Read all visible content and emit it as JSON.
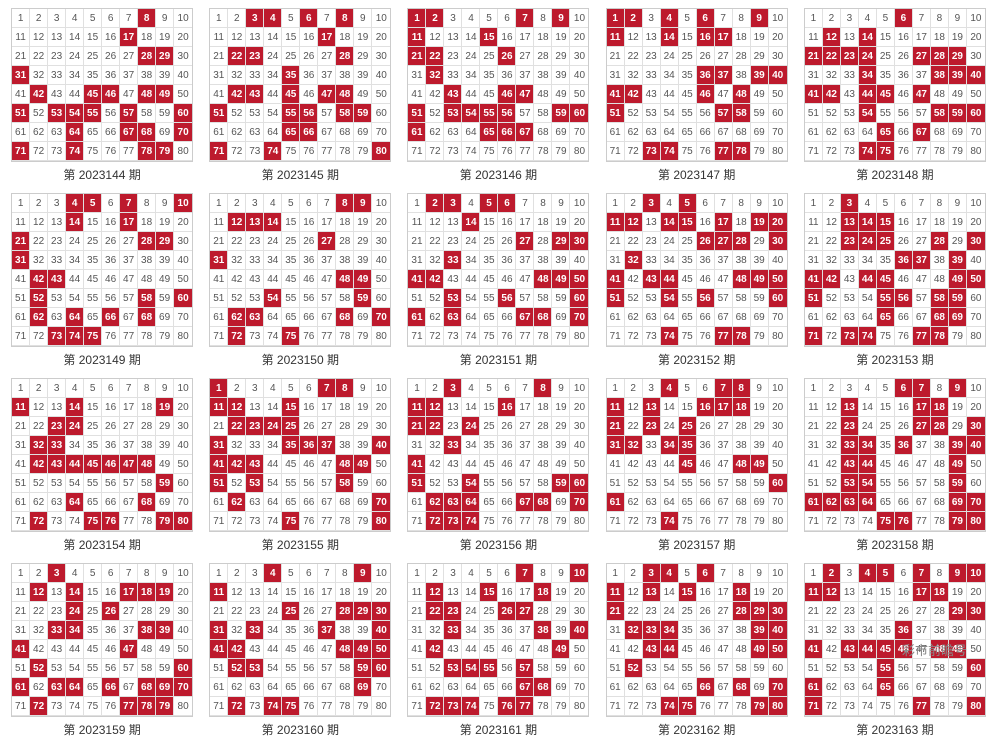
{
  "label_prefix": "第 ",
  "label_suffix": " 期",
  "colors": {
    "hit_bg": "#bd1a2d",
    "hit_text": "#ffffff",
    "cell_text": "#555555",
    "border": "#e0e0e0",
    "outer_border": "#cccccc",
    "background": "#ffffff",
    "label_text": "#333333"
  },
  "grid": {
    "rows": 8,
    "cols": 10,
    "max_number": 80
  },
  "cards": [
    {
      "period": "2023144",
      "hits": [
        8,
        17,
        28,
        29,
        31,
        42,
        45,
        46,
        48,
        49,
        51,
        53,
        54,
        55,
        57,
        60,
        64,
        67,
        68,
        70,
        71,
        74,
        78,
        79
      ]
    },
    {
      "period": "2023145",
      "hits": [
        3,
        4,
        6,
        8,
        17,
        22,
        23,
        28,
        35,
        42,
        43,
        45,
        47,
        48,
        51,
        55,
        56,
        58,
        59,
        65,
        66,
        71,
        74,
        80
      ]
    },
    {
      "period": "2023146",
      "hits": [
        1,
        2,
        7,
        9,
        11,
        15,
        21,
        22,
        26,
        32,
        43,
        46,
        47,
        51,
        53,
        54,
        55,
        56,
        59,
        60,
        61,
        65,
        66,
        67
      ]
    },
    {
      "period": "2023147",
      "hits": [
        1,
        2,
        4,
        6,
        9,
        11,
        14,
        16,
        17,
        36,
        37,
        39,
        40,
        41,
        42,
        46,
        48,
        51,
        57,
        58,
        73,
        74,
        77,
        78
      ]
    },
    {
      "period": "2023148",
      "hits": [
        6,
        12,
        14,
        27,
        28,
        29,
        21,
        22,
        23,
        24,
        34,
        38,
        39,
        40,
        41,
        42,
        44,
        45,
        47,
        54,
        58,
        59,
        60,
        65,
        67,
        74,
        75
      ]
    },
    {
      "period": "2023149",
      "hits": [
        4,
        5,
        7,
        10,
        14,
        17,
        21,
        28,
        29,
        31,
        42,
        43,
        52,
        58,
        60,
        62,
        64,
        66,
        68,
        73,
        74,
        75
      ]
    },
    {
      "period": "2023150",
      "hits": [
        8,
        9,
        12,
        13,
        14,
        27,
        31,
        48,
        49,
        54,
        59,
        62,
        63,
        68,
        70,
        72,
        75
      ]
    },
    {
      "period": "2023151",
      "hits": [
        2,
        3,
        5,
        6,
        14,
        27,
        29,
        30,
        33,
        41,
        42,
        48,
        49,
        50,
        53,
        56,
        60,
        61,
        63,
        67,
        68,
        70
      ]
    },
    {
      "period": "2023152",
      "hits": [
        3,
        5,
        11,
        12,
        14,
        15,
        17,
        19,
        20,
        26,
        27,
        28,
        30,
        32,
        41,
        43,
        44,
        48,
        49,
        50,
        51,
        54,
        56,
        60,
        74,
        77,
        78
      ]
    },
    {
      "period": "2023153",
      "hits": [
        3,
        13,
        14,
        15,
        23,
        24,
        25,
        28,
        30,
        36,
        37,
        39,
        41,
        42,
        44,
        45,
        49,
        50,
        51,
        55,
        56,
        58,
        59,
        65,
        68,
        69,
        71,
        73,
        74,
        77,
        78
      ]
    },
    {
      "period": "2023154",
      "hits": [
        11,
        14,
        19,
        23,
        24,
        32,
        33,
        42,
        43,
        44,
        45,
        46,
        47,
        48,
        59,
        64,
        68,
        72,
        75,
        76,
        79,
        80
      ]
    },
    {
      "period": "2023155",
      "hits": [
        1,
        7,
        8,
        11,
        12,
        15,
        22,
        23,
        24,
        25,
        31,
        35,
        36,
        37,
        40,
        41,
        42,
        43,
        48,
        49,
        51,
        53,
        58,
        62,
        70,
        75,
        80
      ]
    },
    {
      "period": "2023156",
      "hits": [
        3,
        8,
        11,
        12,
        16,
        21,
        22,
        24,
        33,
        41,
        51,
        54,
        59,
        60,
        62,
        63,
        64,
        67,
        68,
        70,
        72,
        73,
        74
      ]
    },
    {
      "period": "2023157",
      "hits": [
        4,
        7,
        8,
        11,
        13,
        16,
        17,
        18,
        21,
        23,
        25,
        31,
        32,
        34,
        35,
        45,
        48,
        49,
        60,
        61,
        74
      ]
    },
    {
      "period": "2023158",
      "hits": [
        6,
        7,
        9,
        13,
        17,
        18,
        23,
        27,
        28,
        30,
        33,
        34,
        36,
        39,
        40,
        43,
        44,
        49,
        53,
        54,
        59,
        61,
        62,
        63,
        64,
        69,
        70,
        75,
        76,
        79,
        80
      ]
    },
    {
      "period": "2023159",
      "hits": [
        3,
        12,
        14,
        17,
        18,
        19,
        24,
        26,
        33,
        34,
        38,
        39,
        41,
        47,
        52,
        60,
        61,
        63,
        64,
        66,
        68,
        69,
        70,
        72,
        77,
        78,
        79
      ]
    },
    {
      "period": "2023160",
      "hits": [
        4,
        9,
        11,
        25,
        28,
        29,
        30,
        31,
        33,
        37,
        40,
        41,
        42,
        48,
        49,
        50,
        52,
        53,
        59,
        60,
        69,
        72,
        74,
        75
      ]
    },
    {
      "period": "2023161",
      "hits": [
        7,
        10,
        12,
        15,
        18,
        22,
        23,
        26,
        27,
        33,
        38,
        40,
        42,
        49,
        53,
        54,
        55,
        57,
        67,
        68,
        72,
        73,
        74,
        76,
        77
      ]
    },
    {
      "period": "2023162",
      "hits": [
        3,
        4,
        6,
        11,
        13,
        15,
        18,
        21,
        28,
        29,
        30,
        32,
        33,
        34,
        39,
        40,
        43,
        44,
        49,
        50,
        52,
        66,
        68,
        70,
        74,
        75,
        79,
        80
      ]
    },
    {
      "period": "2023163",
      "hits": [
        2,
        4,
        5,
        7,
        9,
        10,
        11,
        12,
        17,
        18,
        29,
        30,
        36,
        41,
        43,
        44,
        45,
        46,
        48,
        49,
        55,
        60,
        61,
        65,
        71,
        77,
        80
      ]
    }
  ]
}
